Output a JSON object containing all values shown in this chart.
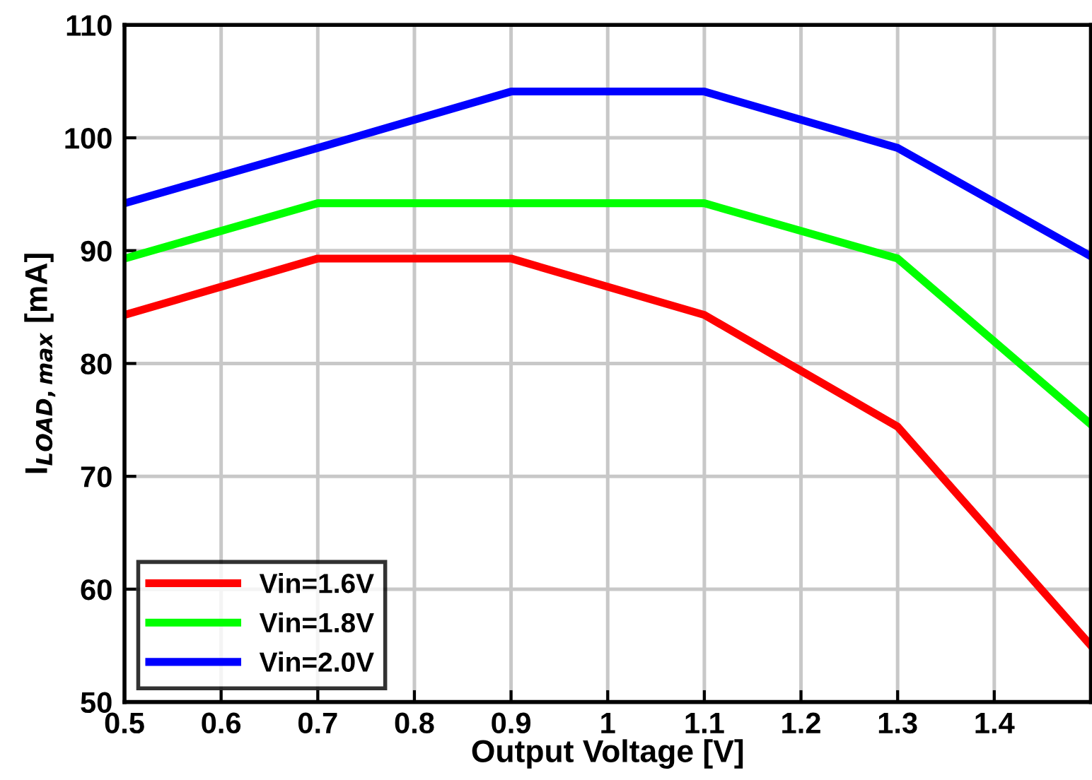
{
  "chart_data": {
    "type": "line",
    "xlabel": "Output Voltage [V]",
    "ylabel": "I$_{LOAD,max}$ [mA]",
    "x": [
      0.5,
      0.7,
      0.9,
      1.1,
      1.3,
      1.5
    ],
    "series": [
      {
        "name": "Vin=1.6V",
        "color": "#ff0000",
        "values": [
          84.3,
          89.3,
          89.3,
          84.3,
          74.4,
          55
        ]
      },
      {
        "name": "Vin=1.8V",
        "color": "#00ff00",
        "values": [
          89.3,
          94.2,
          94.2,
          94.2,
          89.3,
          74.6
        ]
      },
      {
        "name": "Vin=2.0V",
        "color": "#0000ff",
        "values": [
          94.2,
          99.1,
          104.1,
          104.1,
          99.1,
          89.5
        ]
      }
    ],
    "xlim": [
      0.5,
      1.5
    ],
    "xticks": [
      0.5,
      0.6,
      0.7,
      0.8,
      0.9,
      1,
      1.1,
      1.2,
      1.3,
      1.4
    ],
    "ylim": [
      50,
      110
    ],
    "yticks": [
      50,
      60,
      70,
      80,
      90,
      100,
      110
    ],
    "grid": true,
    "legend": "bottom left",
    "marker": "none",
    "line_style": "solid"
  }
}
